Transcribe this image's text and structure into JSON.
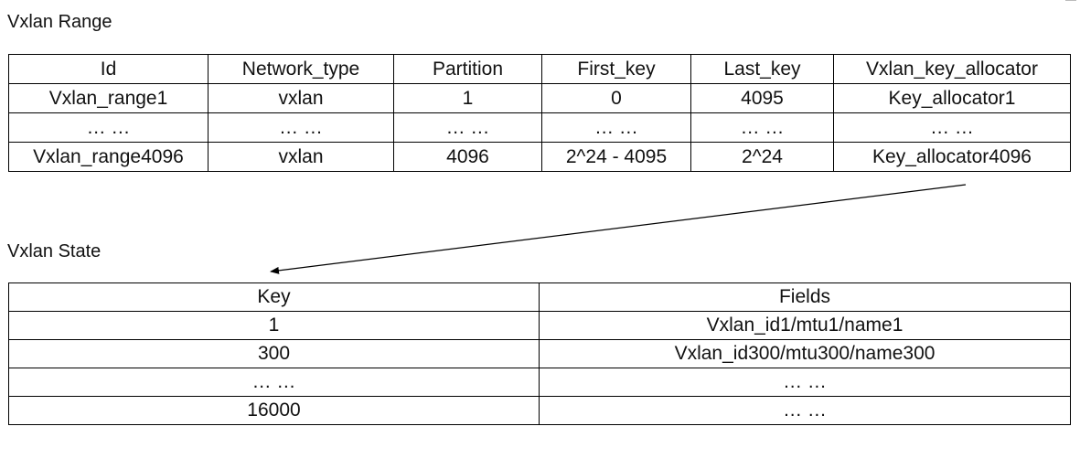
{
  "range": {
    "title": "Vxlan Range",
    "headers": [
      "Id",
      "Network_type",
      "Partition",
      "First_key",
      "Last_key",
      "Vxlan_key_allocator"
    ],
    "rows": [
      [
        "Vxlan_range1",
        "vxlan",
        "1",
        "0",
        "4095",
        "Key_allocator1"
      ],
      [
        "… …",
        "… …",
        "… …",
        "… …",
        "… …",
        "… …"
      ],
      [
        "Vxlan_range4096",
        "vxlan",
        "4096",
        "2^24 - 4095",
        "2^24",
        "Key_allocator4096"
      ]
    ]
  },
  "state": {
    "title": "Vxlan State",
    "headers": [
      "Key",
      "Fields"
    ],
    "rows": [
      [
        "1",
        "Vxlan_id1/mtu1/name1"
      ],
      [
        "300",
        "Vxlan_id300/mtu300/name300"
      ],
      [
        "… …",
        "… …"
      ],
      [
        "16000",
        "… …"
      ]
    ]
  }
}
